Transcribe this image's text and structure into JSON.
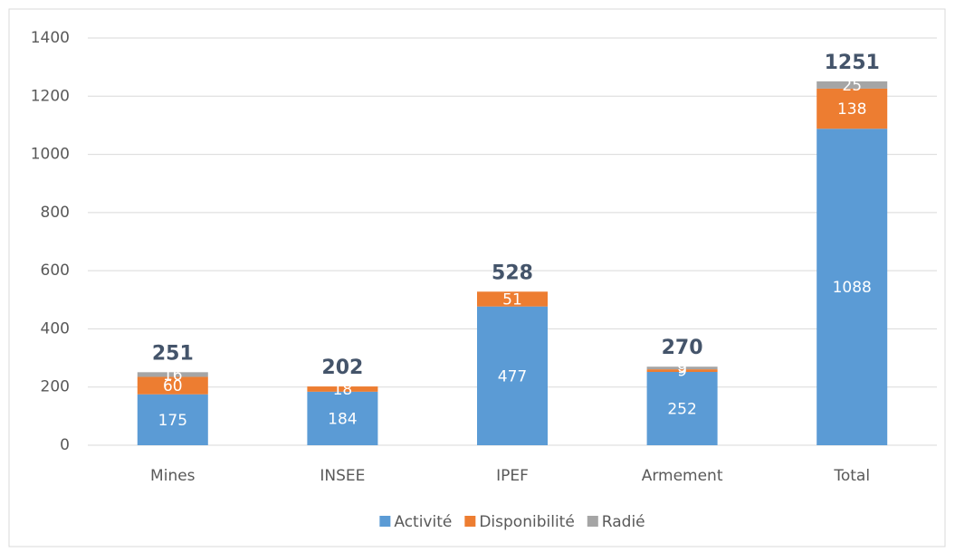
{
  "chart_data": {
    "type": "stacked_bar",
    "categories": [
      "Mines",
      "INSEE",
      "IPEF",
      "Armement",
      "Total"
    ],
    "series": [
      {
        "name": "Activité",
        "color": "#5b9bd5",
        "values": [
          175,
          184,
          477,
          252,
          1088
        ]
      },
      {
        "name": "Disponibilité",
        "color": "#ed7d31",
        "values": [
          60,
          18,
          51,
          9,
          138
        ]
      },
      {
        "name": "Radié",
        "color": "#a5a5a5",
        "values": [
          16,
          null,
          null,
          9,
          25
        ]
      }
    ],
    "totals": [
      251,
      202,
      528,
      270,
      1251
    ],
    "ylim": [
      0,
      1400
    ],
    "yticks": [
      0,
      200,
      400,
      600,
      800,
      1000,
      1200,
      1400
    ],
    "grid": true,
    "legend": "bottom"
  }
}
